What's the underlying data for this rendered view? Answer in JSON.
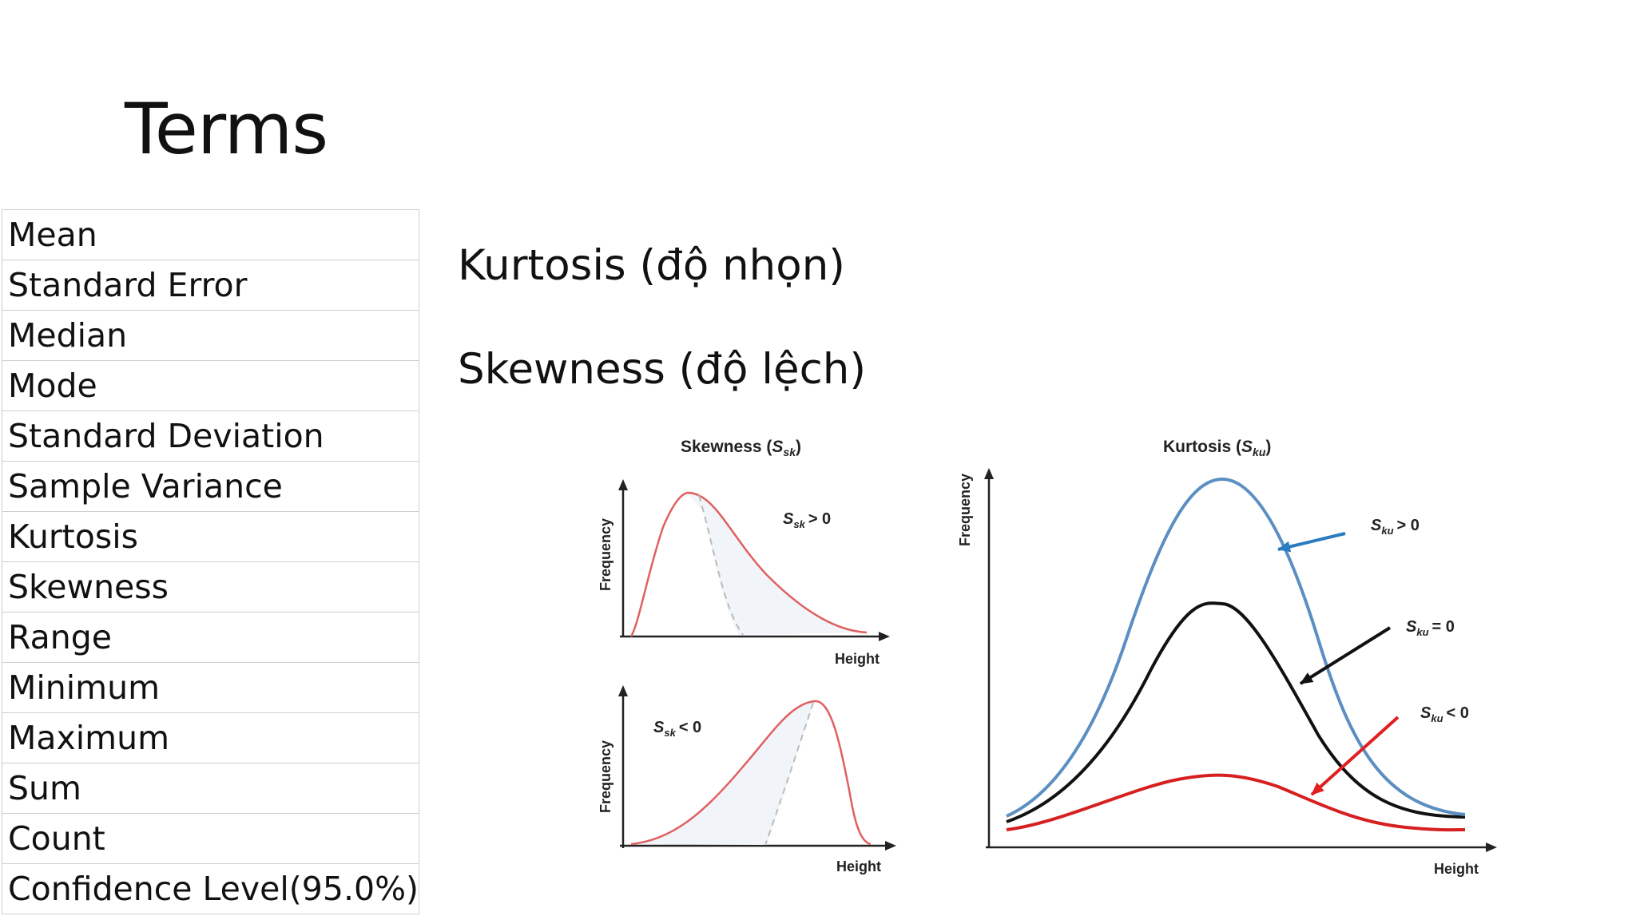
{
  "slide": {
    "title": "Terms",
    "terms": [
      "Mean",
      "Standard Error",
      "Median",
      "Mode",
      "Standard Deviation",
      "Sample Variance",
      "Kurtosis",
      "Skewness",
      "Range",
      "Minimum",
      "Maximum",
      "Sum",
      "Count",
      "Confidence Level(95.0%)"
    ],
    "heading_kurtosis": "Kurtosis (độ nhọn)",
    "heading_skewness": "Skewness (độ lệch)"
  },
  "figure": {
    "skew": {
      "title_prefix": "Skewness (",
      "title_sym": "S",
      "title_sub": "sk",
      "title_suffix": ")",
      "ylabel": "Frequency",
      "xlabel": "Height",
      "pos_label": "> 0",
      "neg_label": "< 0",
      "curve_color": "#e06060"
    },
    "kurt": {
      "title_prefix": "Kurtosis (",
      "title_sym": "S",
      "title_sub": "ku",
      "title_suffix": ")",
      "ylabel": "Frequency",
      "xlabel": "Height",
      "labels": [
        "> 0",
        "= 0",
        "< 0"
      ],
      "colors": [
        "#5b8fc2",
        "#111111",
        "#d62020"
      ]
    }
  }
}
